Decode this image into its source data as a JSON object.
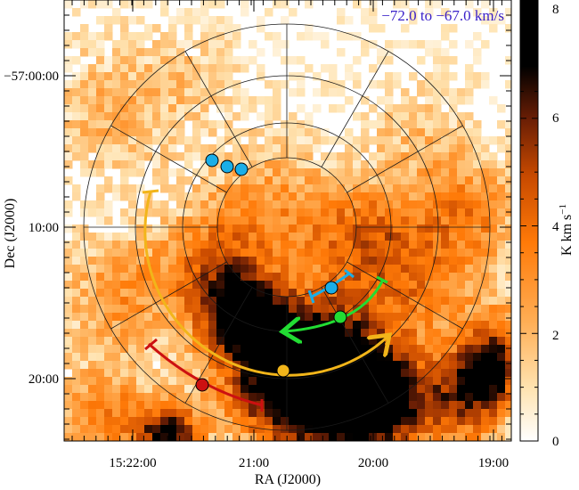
{
  "figure": {
    "velocity_label": "−72.0 to −67.0 km/s",
    "velocity_color": "#3b22c9",
    "x_axis": {
      "title": "RA (J2000)",
      "ticks": [
        "15:22:00",
        "21:00",
        "20:00",
        "19:00"
      ]
    },
    "y_axis": {
      "title": "Dec (J2000)",
      "ticks": [
        "−57:00:00",
        "10:00",
        "20:00"
      ]
    },
    "colorbar": {
      "label": "K km s",
      "label_sup": "−1",
      "ticks": [
        "0",
        "2",
        "4",
        "6",
        "8"
      ],
      "range": [
        0,
        8.2
      ],
      "colormap": [
        "#ffffff",
        "#ffe3b0",
        "#ffae55",
        "#ff7a08",
        "#c84a00",
        "#6a1e05",
        "#000000"
      ]
    },
    "overlay": {
      "polar_grid": {
        "rings": 4,
        "spokes": 12
      },
      "arcs": [
        {
          "name": "red-arc",
          "color": "#cc1111"
        },
        {
          "name": "yellow-arc",
          "color": "#f2b51a"
        },
        {
          "name": "green-arc",
          "color": "#22dd33"
        },
        {
          "name": "cyan-arc",
          "color": "#1aaee8"
        }
      ]
    }
  }
}
